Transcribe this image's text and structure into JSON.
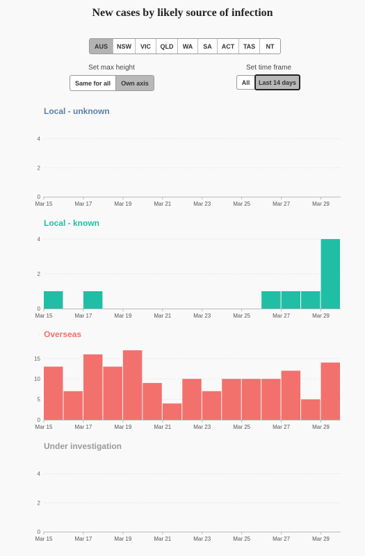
{
  "title": "New cases by likely source of infection",
  "regions": [
    "AUS",
    "NSW",
    "VIC",
    "QLD",
    "WA",
    "SA",
    "ACT",
    "TAS",
    "NT"
  ],
  "active_region": "AUS",
  "max_height": {
    "label": "Set max height",
    "options": [
      "Same for all",
      "Own axis"
    ],
    "selected": "Own axis"
  },
  "time_frame": {
    "label": "Set time frame",
    "options": [
      "All",
      "Last 14 days"
    ],
    "selected": "Last 14 days"
  },
  "chart_data": [
    {
      "type": "bar",
      "title": "Local - unknown",
      "color": "#5b7fa8",
      "categories": [
        "Mar 15",
        "Mar 16",
        "Mar 17",
        "Mar 18",
        "Mar 19",
        "Mar 20",
        "Mar 21",
        "Mar 22",
        "Mar 23",
        "Mar 24",
        "Mar 25",
        "Mar 26",
        "Mar 27",
        "Mar 28",
        "Mar 29"
      ],
      "values": [
        0,
        0,
        0,
        0,
        0,
        0,
        0,
        0,
        0,
        0,
        0,
        0,
        0,
        0,
        0
      ],
      "yticks": [
        0,
        2,
        4
      ],
      "ylim": [
        0,
        4.8
      ],
      "xticks": [
        "Mar 15",
        "Mar 17",
        "Mar 19",
        "Mar 21",
        "Mar 23",
        "Mar 25",
        "Mar 27",
        "Mar 29"
      ]
    },
    {
      "type": "bar",
      "title": "Local - known",
      "color": "#20bfa5",
      "categories": [
        "Mar 15",
        "Mar 16",
        "Mar 17",
        "Mar 18",
        "Mar 19",
        "Mar 20",
        "Mar 21",
        "Mar 22",
        "Mar 23",
        "Mar 24",
        "Mar 25",
        "Mar 26",
        "Mar 27",
        "Mar 28",
        "Mar 29"
      ],
      "values": [
        1,
        0,
        1,
        0,
        0,
        0,
        0,
        0,
        0,
        0,
        0,
        1,
        1,
        1,
        4
      ],
      "yticks": [
        0,
        2,
        4
      ],
      "ylim": [
        0,
        4
      ],
      "xticks": [
        "Mar 15",
        "Mar 17",
        "Mar 19",
        "Mar 21",
        "Mar 23",
        "Mar 25",
        "Mar 27",
        "Mar 29"
      ]
    },
    {
      "type": "bar",
      "title": "Overseas",
      "color": "#f2716d",
      "categories": [
        "Mar 15",
        "Mar 16",
        "Mar 17",
        "Mar 18",
        "Mar 19",
        "Mar 20",
        "Mar 21",
        "Mar 22",
        "Mar 23",
        "Mar 24",
        "Mar 25",
        "Mar 26",
        "Mar 27",
        "Mar 28",
        "Mar 29"
      ],
      "values": [
        13,
        7,
        16,
        13,
        17,
        9,
        4,
        10,
        7,
        10,
        10,
        10,
        12,
        5,
        14
      ],
      "yticks": [
        0,
        5,
        10,
        15
      ],
      "ylim": [
        0,
        17
      ],
      "xticks": [
        "Mar 15",
        "Mar 17",
        "Mar 19",
        "Mar 21",
        "Mar 23",
        "Mar 25",
        "Mar 27",
        "Mar 29"
      ]
    },
    {
      "type": "bar",
      "title": "Under investigation",
      "color": "#9a9a9a",
      "categories": [
        "Mar 15",
        "Mar 16",
        "Mar 17",
        "Mar 18",
        "Mar 19",
        "Mar 20",
        "Mar 21",
        "Mar 22",
        "Mar 23",
        "Mar 24",
        "Mar 25",
        "Mar 26",
        "Mar 27",
        "Mar 28",
        "Mar 29"
      ],
      "values": [
        0,
        0,
        0,
        0,
        0,
        0,
        0,
        0,
        0,
        0,
        0,
        0,
        0,
        0,
        0
      ],
      "yticks": [
        0,
        2,
        4
      ],
      "ylim": [
        0,
        4.8
      ],
      "xticks": [
        "Mar 15",
        "Mar 17",
        "Mar 19",
        "Mar 21",
        "Mar 23",
        "Mar 25",
        "Mar 27",
        "Mar 29"
      ]
    }
  ]
}
